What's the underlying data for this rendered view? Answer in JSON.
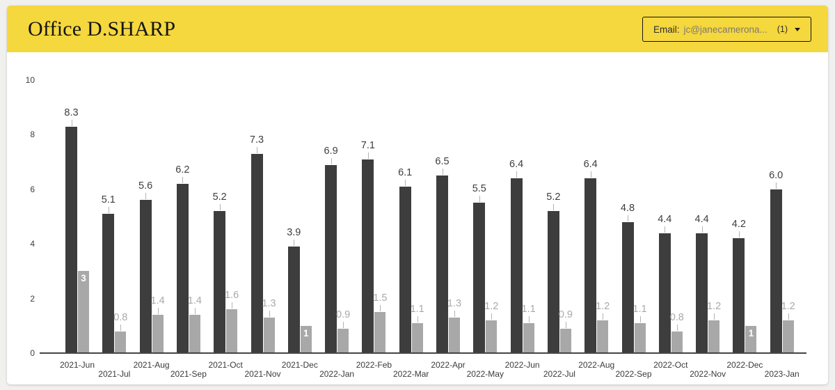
{
  "header": {
    "title": "Office D.SHARP",
    "email_filter": {
      "label": "Email:",
      "value": "jc@janecamerona...",
      "count": "(1)"
    }
  },
  "chart_data": {
    "type": "bar",
    "title": "",
    "xlabel": "",
    "ylabel": "",
    "ylim": [
      0,
      10
    ],
    "yticks": [
      0,
      2,
      4,
      6,
      8,
      10
    ],
    "grid": false,
    "legend": "none",
    "categories": [
      "2021-Jun",
      "2021-Jul",
      "2021-Aug",
      "2021-Sep",
      "2021-Oct",
      "2021-Nov",
      "2021-Dec",
      "2022-Jan",
      "2022-Feb",
      "2022-Mar",
      "2022-Apr",
      "2022-May",
      "2022-Jun",
      "2022-Jul",
      "2022-Aug",
      "2022-Sep",
      "2022-Oct",
      "2022-Nov",
      "2022-Dec",
      "2023-Jan"
    ],
    "series": [
      {
        "name": "primary",
        "color": "#3d3d3d",
        "values": [
          8.3,
          5.1,
          5.6,
          6.2,
          5.2,
          7.3,
          3.9,
          6.9,
          7.1,
          6.1,
          6.5,
          5.5,
          6.4,
          5.2,
          6.4,
          4.8,
          4.4,
          4.4,
          4.2,
          6.0
        ],
        "labels": [
          "8.3",
          "5.1",
          "5.6",
          "6.2",
          "5.2",
          "7.3",
          "3.9",
          "6.9",
          "7.1",
          "6.1",
          "6.5",
          "5.5",
          "6.4",
          "5.2",
          "6.4",
          "4.8",
          "4.4",
          "4.4",
          "4.2",
          "6.0"
        ]
      },
      {
        "name": "secondary",
        "color": "#a8a8a8",
        "values": [
          3,
          0.8,
          1.4,
          1.4,
          1.6,
          1.3,
          1,
          0.9,
          1.5,
          1.1,
          1.3,
          1.2,
          1.1,
          0.9,
          1.2,
          1.1,
          0.8,
          1.2,
          1,
          1.2
        ],
        "labels": [
          "3",
          "0.8",
          "1.4",
          "1.4",
          "1.6",
          "1.3",
          "1",
          "0.9",
          "1.5",
          "1.1",
          "1.3",
          "1.2",
          "1.1",
          "0.9",
          "1.2",
          "1.1",
          "0.8",
          "1.2",
          "1",
          "1.2"
        ],
        "labels_inside": [
          0,
          6,
          18
        ]
      }
    ]
  },
  "colors": {
    "header_bg": "#f5d73e",
    "page_bg": "#f0f0ee",
    "card_bg": "#ffffff",
    "bar_primary": "#3d3d3d",
    "bar_secondary": "#a8a8a8",
    "label_primary": "#3d3d3d",
    "label_secondary": "#a9a9a9",
    "axis_line": "#454545",
    "axis_text": "#3c3c3c"
  }
}
